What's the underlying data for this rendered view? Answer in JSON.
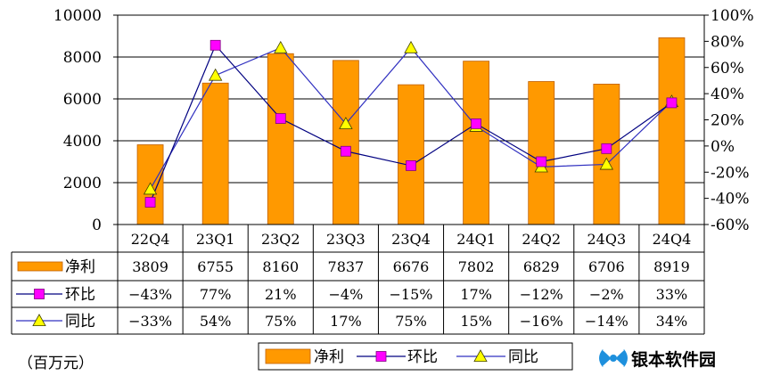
{
  "chart_data": {
    "type": "bar",
    "categories": [
      "22Q4",
      "23Q1",
      "23Q2",
      "23Q3",
      "23Q4",
      "24Q1",
      "24Q2",
      "24Q3",
      "24Q4"
    ],
    "series": [
      {
        "name": "净利",
        "type": "bar",
        "axis": "left",
        "values": [
          3809,
          6755,
          8160,
          7837,
          6676,
          7802,
          6829,
          6706,
          8919
        ],
        "labels": [
          "3809",
          "6755",
          "8160",
          "7837",
          "6676",
          "7802",
          "6829",
          "6706",
          "8919"
        ]
      },
      {
        "name": "环比",
        "type": "line",
        "marker": "square",
        "axis": "right",
        "values": [
          -43,
          77,
          21,
          -4,
          -15,
          17,
          -12,
          -2,
          33
        ],
        "labels": [
          "−43%",
          "77%",
          "21%",
          "−4%",
          "−15%",
          "17%",
          "−12%",
          "−2%",
          "33%"
        ]
      },
      {
        "name": "同比",
        "type": "line",
        "marker": "triangle",
        "axis": "right",
        "values": [
          -33,
          54,
          75,
          17,
          75,
          15,
          -16,
          -14,
          34
        ],
        "labels": [
          "−33%",
          "54%",
          "75%",
          "17%",
          "75%",
          "15%",
          "−16%",
          "−14%",
          "34%"
        ]
      }
    ],
    "y_left": {
      "min": 0,
      "max": 10000,
      "ticks": [
        "0",
        "2000",
        "4000",
        "6000",
        "8000",
        "10000"
      ]
    },
    "y_right": {
      "min": -60,
      "max": 100,
      "ticks": [
        "-60%",
        "-40%",
        "-20%",
        "0%",
        "20%",
        "40%",
        "60%",
        "80%",
        "100%"
      ]
    },
    "unit_note": "（百万元）",
    "legend": [
      "净利",
      "环比",
      "同比"
    ],
    "colors": {
      "bar": "#FF9900",
      "bar_border": "#C06000",
      "qoq": "#000080",
      "qoq_marker": "#FF00FF",
      "yoy": "#3030C0",
      "yoy_marker": "#FFFF00"
    }
  },
  "watermark": {
    "text": "银本软件园",
    "color": "#1E90DD"
  }
}
